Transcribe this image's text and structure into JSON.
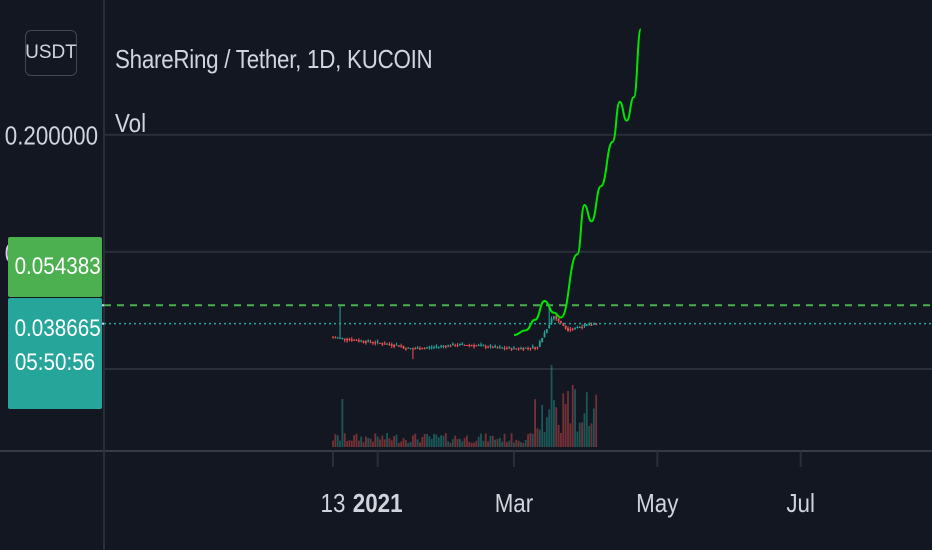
{
  "header": {
    "title": "ShareRing / Tether, 1D, KUCOIN",
    "indicator": "Vol",
    "unit_button": "USDT"
  },
  "badges": {
    "line_price": "0.054383",
    "last_price": "0.038665",
    "countdown": "05:50:56"
  },
  "colors": {
    "background": "#131722",
    "grid": "#2a2e39",
    "up": "#26a69a",
    "down": "#ef5350",
    "projection": "#00e600",
    "line_badge": "#4caf50",
    "last_badge": "#26a69a"
  },
  "chart_data": {
    "type": "candlestick",
    "y_axis": {
      "tick_labels": [
        "0.200000",
        "0.100000"
      ],
      "ylim": [
        -0.07,
        0.315
      ]
    },
    "x_axis": {
      "tick_labels": [
        "13",
        "2021",
        "Mar",
        "May",
        "Jul"
      ],
      "tick_days": [
        0,
        19,
        77,
        138,
        199
      ]
    },
    "horizontal_lines": [
      {
        "label": "0.054383",
        "value": 0.0544,
        "style": "dashed",
        "color": "#4caf50"
      },
      {
        "label": "0.038665",
        "value": 0.0387,
        "style": "dotted",
        "color": "#26a69a"
      }
    ],
    "price_summary": {
      "first_close": 0.027,
      "low": 0.0085,
      "high": 0.054,
      "last": 0.0387
    },
    "projection_path": [
      [
        77,
        0.029
      ],
      [
        82,
        0.033
      ],
      [
        86,
        0.042
      ],
      [
        90,
        0.058
      ],
      [
        94,
        0.048
      ],
      [
        97,
        0.044
      ],
      [
        104,
        0.098
      ],
      [
        107,
        0.14
      ],
      [
        110,
        0.126
      ],
      [
        114,
        0.156
      ],
      [
        119,
        0.194
      ],
      [
        122,
        0.228
      ],
      [
        125,
        0.212
      ],
      [
        128,
        0.232
      ],
      [
        131,
        0.29
      ]
    ]
  }
}
